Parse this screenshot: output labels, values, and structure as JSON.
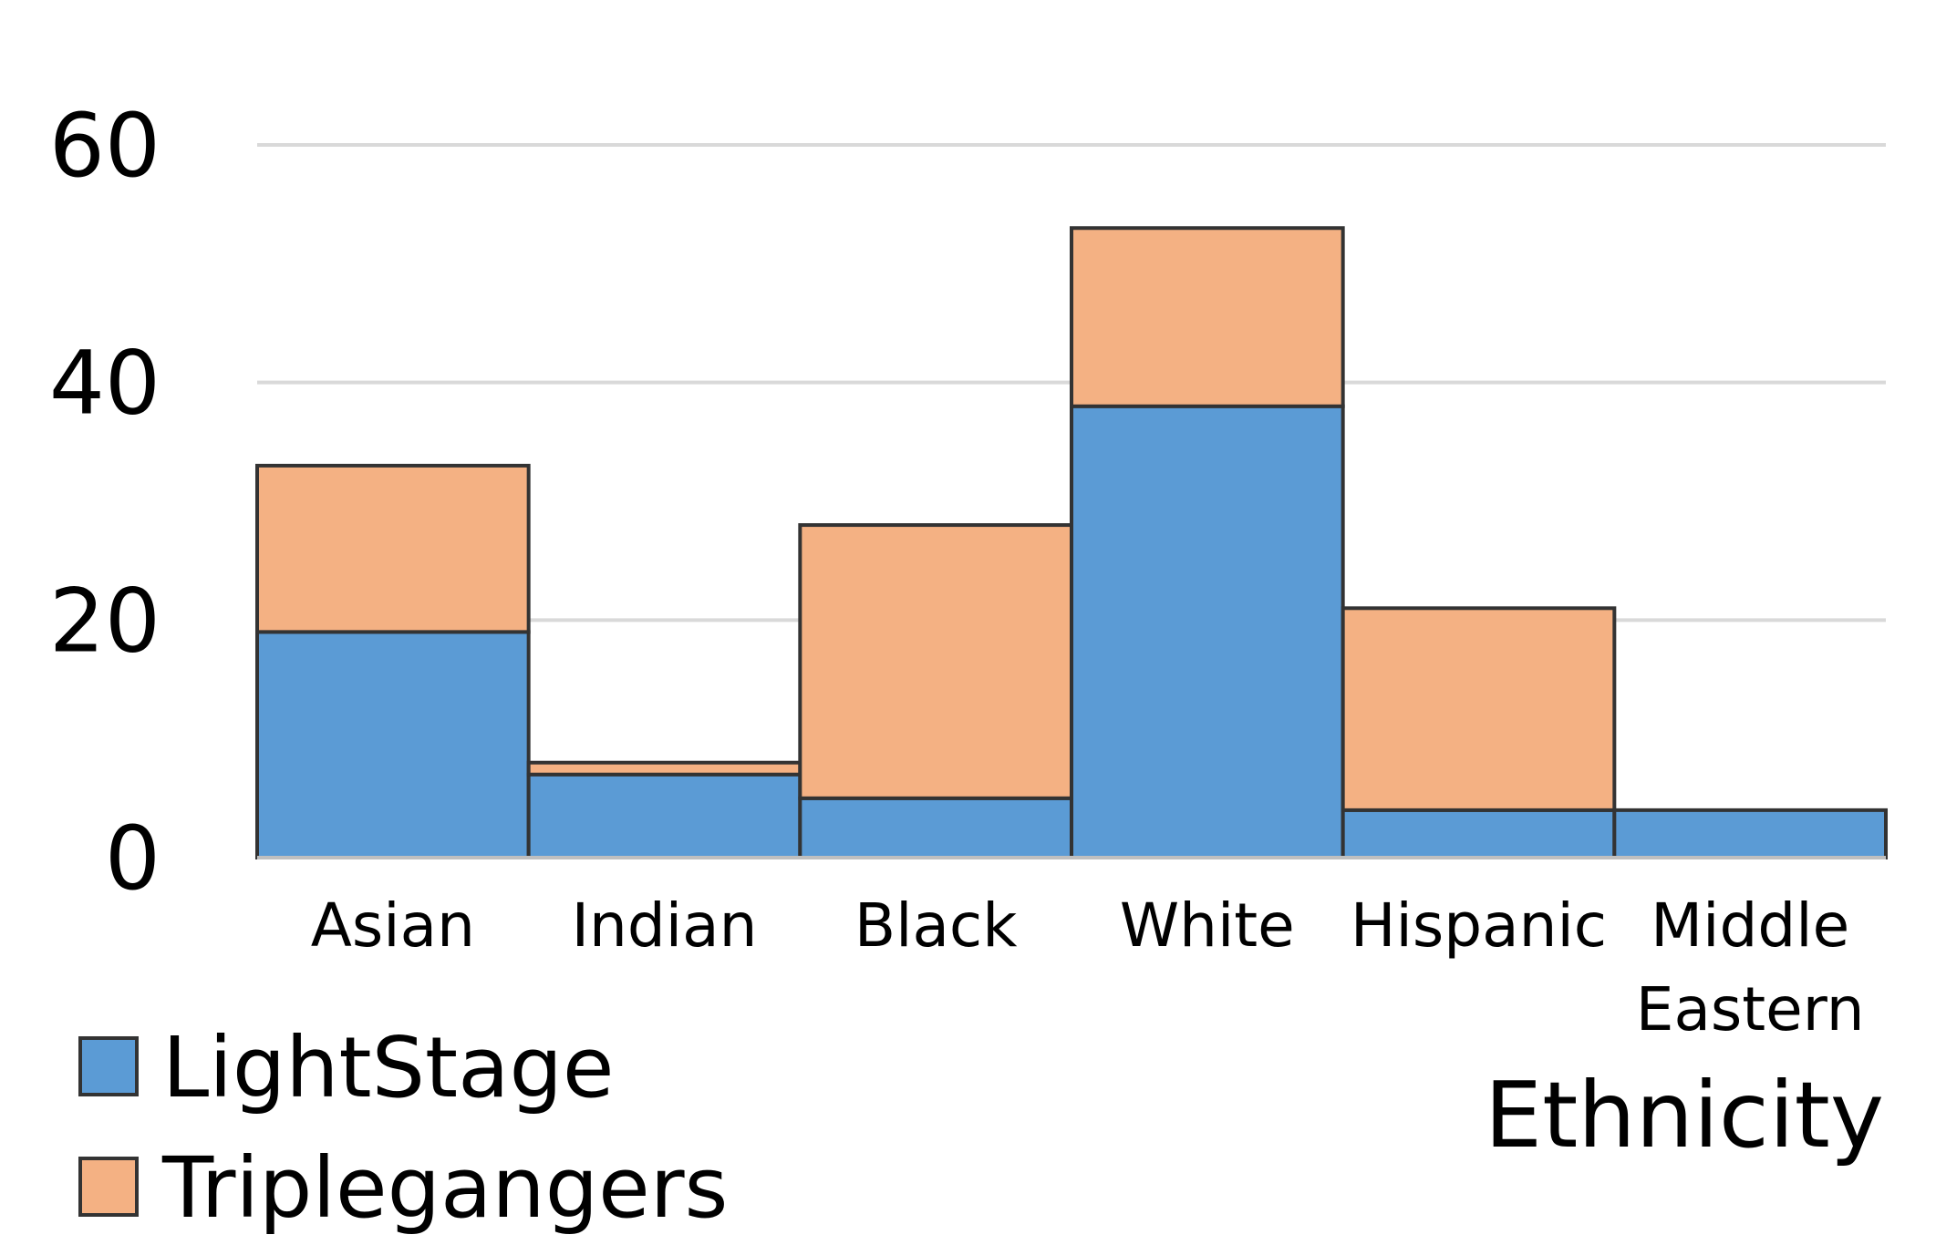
{
  "chart_data": {
    "type": "bar",
    "stacked": true,
    "categories": [
      "Asian",
      "Indian",
      "Black",
      "White",
      "Hispanic",
      "Middle Eastern"
    ],
    "category_lines": [
      [
        "Asian"
      ],
      [
        "Indian"
      ],
      [
        "Black"
      ],
      [
        "White"
      ],
      [
        "Hispanic"
      ],
      [
        "Middle",
        "Eastern"
      ]
    ],
    "series": [
      {
        "name": "LightStage",
        "values": [
          19,
          7,
          5,
          38,
          4,
          4
        ],
        "color": "#5b9bd5"
      },
      {
        "name": "Triplegangers",
        "values": [
          14,
          1,
          23,
          15,
          17,
          0
        ],
        "color": "#f4b183"
      }
    ],
    "title": "",
    "xlabel": "Ethnicity",
    "ylabel": "",
    "ylim": [
      0,
      60
    ],
    "yticks": [
      0,
      20,
      40,
      60
    ],
    "grid": true,
    "legend_position": "bottom-left"
  }
}
